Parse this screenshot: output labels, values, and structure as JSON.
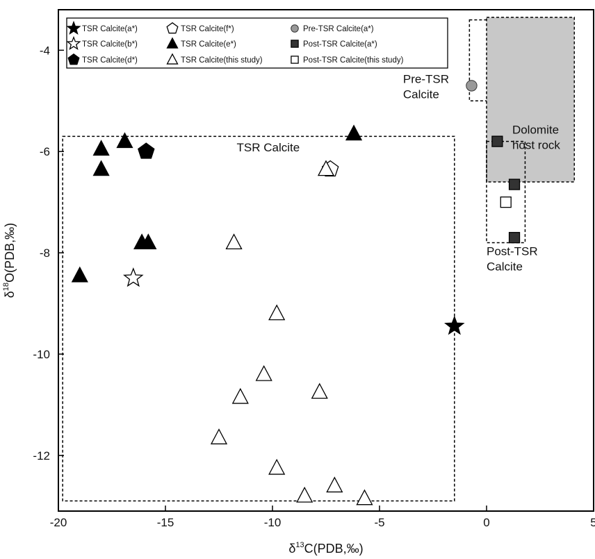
{
  "chart_data": {
    "type": "scatter",
    "xlabel": {
      "prefix": "δ",
      "sup": "13",
      "rest": "C(PDB,‰)"
    },
    "ylabel": {
      "prefix": "δ",
      "sup": "18",
      "rest": "O(PDB,‰)"
    },
    "xlim": [
      -20,
      5
    ],
    "ylim": [
      -13.1,
      -3.2
    ],
    "xticks": [
      -20,
      -15,
      -10,
      -5,
      0,
      5
    ],
    "yticks": [
      -4,
      -6,
      -8,
      -10,
      -12
    ],
    "grid": false,
    "legend_position": "top",
    "series": [
      {
        "name": "TSR Calcite(a*)",
        "marker": "star",
        "fill": "#000000",
        "points": [
          [
            -1.5,
            -9.45
          ]
        ]
      },
      {
        "name": "TSR Calcite(b*)",
        "marker": "star",
        "fill": "#ffffff",
        "points": [
          [
            -16.5,
            -8.5
          ]
        ]
      },
      {
        "name": "TSR Calcite(d*)",
        "marker": "pentagon",
        "fill": "#000000",
        "points": [
          [
            -15.9,
            -6.0
          ]
        ]
      },
      {
        "name": "TSR Calcite(f*)",
        "marker": "pentagon",
        "fill": "#ffffff",
        "points": [
          [
            -7.3,
            -6.35
          ]
        ]
      },
      {
        "name": "TSR Calcite(e*)",
        "marker": "triangle",
        "fill": "#000000",
        "points": [
          [
            -18,
            -5.95
          ],
          [
            -18,
            -6.35
          ],
          [
            -16.9,
            -5.8
          ],
          [
            -6.2,
            -5.65
          ],
          [
            -16.1,
            -7.8
          ],
          [
            -15.8,
            -7.8
          ],
          [
            -19,
            -8.45
          ]
        ]
      },
      {
        "name": "TSR Calcite(this study)",
        "marker": "triangle",
        "fill": "#ffffff",
        "points": [
          [
            -7.5,
            -6.35
          ],
          [
            -11.8,
            -7.8
          ],
          [
            -9.8,
            -9.2
          ],
          [
            -10.4,
            -10.4
          ],
          [
            -11.5,
            -10.85
          ],
          [
            -7.8,
            -10.75
          ],
          [
            -12.5,
            -11.65
          ],
          [
            -9.8,
            -12.25
          ],
          [
            -8.5,
            -12.8
          ],
          [
            -7.1,
            -12.6
          ],
          [
            -5.7,
            -12.85
          ]
        ]
      },
      {
        "name": "Pre-TSR Calcite(a*)",
        "marker": "circle",
        "fill": "#999999",
        "points": [
          [
            -0.7,
            -4.7
          ]
        ]
      },
      {
        "name": "Post-TSR Calcite(a*)",
        "marker": "square",
        "fill": "#333333",
        "points": [
          [
            0.5,
            -5.8
          ],
          [
            1.3,
            -6.65
          ],
          [
            1.3,
            -7.7
          ]
        ]
      },
      {
        "name": "Post-TSR Calcite(this study)",
        "marker": "square",
        "fill": "#ffffff",
        "points": [
          [
            0.9,
            -7.0
          ]
        ]
      }
    ],
    "regions": [
      {
        "label": "TSR Calcite",
        "style": "dashed",
        "x": [
          -19.8,
          -1.5
        ],
        "y": [
          -12.9,
          -5.7
        ]
      },
      {
        "label": "Pre-TSR Calcite",
        "style": "dashed",
        "x": [
          -0.8,
          1.6
        ],
        "y": [
          -5.0,
          -3.4
        ]
      },
      {
        "label": "Dolomite host rock",
        "style": "shaded",
        "x": [
          0,
          4.1
        ],
        "y": [
          -6.6,
          -3.35
        ]
      },
      {
        "label": "Post-TSR Calcite",
        "style": "dashed",
        "x": [
          0,
          1.8
        ],
        "y": [
          -7.8,
          -5.8
        ]
      }
    ],
    "region_labels": [
      {
        "lines": [
          "TSR Calcite"
        ],
        "anchor": "middle",
        "x": -10.2,
        "y": -6.0
      },
      {
        "lines": [
          "Pre-TSR",
          "Calcite"
        ],
        "anchor": "start",
        "x": -3.9,
        "y": -4.65
      },
      {
        "lines": [
          "Dolomite",
          "host rock"
        ],
        "anchor": "start",
        "x": 1.2,
        "y": -5.65
      },
      {
        "lines": [
          "Post-TSR",
          "Calcite"
        ],
        "anchor": "start",
        "x": 0.0,
        "y": -8.05
      }
    ]
  }
}
